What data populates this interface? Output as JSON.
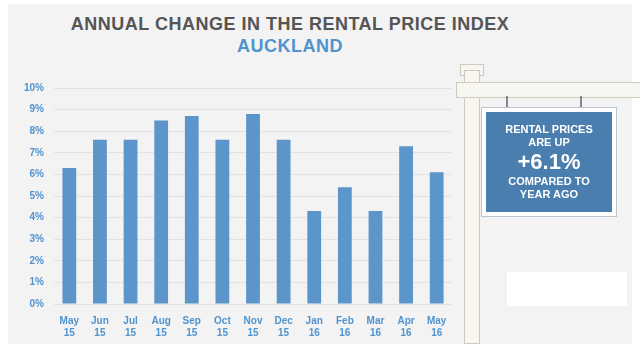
{
  "chart_data": {
    "type": "bar",
    "title": "ANNUAL CHANGE IN THE RENTAL PRICE INDEX",
    "subtitle": "AUCKLAND",
    "categories": [
      "May 15",
      "Jun 15",
      "Jul 15",
      "Aug 15",
      "Sep 15",
      "Oct 15",
      "Nov 15",
      "Dec 15",
      "Jan 16",
      "Feb 16",
      "Mar 16",
      "Apr 16",
      "May 16"
    ],
    "values": [
      6.3,
      7.6,
      7.6,
      8.5,
      8.7,
      7.6,
      8.8,
      7.6,
      4.3,
      5.4,
      4.3,
      7.3,
      6.1
    ],
    "color": "#5b95c9",
    "ylim": [
      0,
      10
    ],
    "yticks": [
      {
        "value": 0,
        "label": "0%"
      },
      {
        "value": 1,
        "label": "1%"
      },
      {
        "value": 2,
        "label": "2%"
      },
      {
        "value": 3,
        "label": "3%"
      },
      {
        "value": 4,
        "label": "4%"
      },
      {
        "value": 5,
        "label": "5%"
      },
      {
        "value": 6,
        "label": "6%"
      },
      {
        "value": 7,
        "label": "7%"
      },
      {
        "value": 8,
        "label": "8%"
      },
      {
        "value": 9,
        "label": "9%"
      },
      {
        "value": 10,
        "label": "10%"
      }
    ],
    "grid": true,
    "annotations": [
      "RENTAL PRICES ARE UP",
      "+6.1%",
      "COMPARED TO YEAR AGO"
    ]
  }
}
